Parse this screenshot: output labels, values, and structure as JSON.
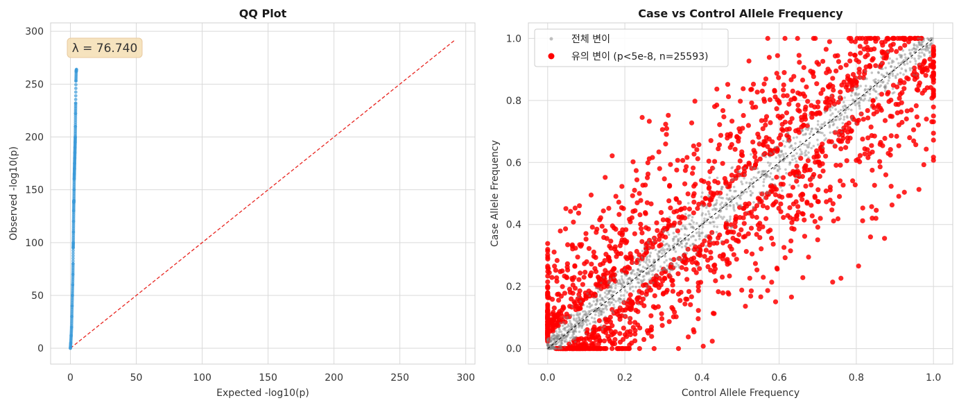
{
  "chart_data": [
    {
      "type": "scatter",
      "title": "QQ Plot",
      "xlabel": "Expected -log10(p)",
      "ylabel": "Observed -log10(p)",
      "xlim": [
        -15,
        307
      ],
      "ylim": [
        -15,
        308
      ],
      "xticks": [
        0,
        50,
        100,
        150,
        200,
        250,
        300
      ],
      "yticks": [
        0,
        50,
        100,
        150,
        200,
        250,
        300
      ],
      "grid": true,
      "annotation": "λ = 76.740",
      "colors": {
        "points": "#3a9ad9",
        "reference": "#e8231e",
        "annotation_bg": "#f5deb3"
      },
      "reference_line": {
        "x": [
          0,
          292
        ],
        "y": [
          0,
          292
        ],
        "style": "dashed"
      },
      "series": [
        {
          "x": [
            0.0,
            0.3,
            0.6,
            0.9,
            1.1,
            1.3,
            1.5,
            1.7,
            1.9,
            2.0,
            2.1,
            2.2,
            2.3,
            2.4,
            2.5,
            2.6,
            2.7,
            2.8,
            2.9,
            3.0,
            3.1,
            3.2,
            3.3,
            3.4,
            3.5,
            3.6,
            3.7,
            3.8,
            3.9,
            4.0,
            4.2,
            4.4,
            4.6
          ],
          "y": [
            0,
            5,
            12,
            20,
            30,
            40,
            50,
            60,
            70,
            80,
            95,
            100,
            110,
            120,
            130,
            138,
            140,
            150,
            160,
            165,
            170,
            175,
            180,
            185,
            190,
            195,
            200,
            210,
            222,
            232,
            253,
            262,
            264
          ]
        }
      ]
    },
    {
      "type": "scatter",
      "title": "Case vs Control Allele Frequency",
      "xlabel": "Control Allele Frequency",
      "ylabel": "Case Allele Frequency",
      "xlim": [
        -0.05,
        1.05
      ],
      "ylim": [
        -0.05,
        1.05
      ],
      "xticks": [
        0.0,
        0.2,
        0.4,
        0.6,
        0.8,
        1.0
      ],
      "yticks": [
        0.0,
        0.2,
        0.4,
        0.6,
        0.8,
        1.0
      ],
      "grid": true,
      "legend_placement": "top-left",
      "colors": {
        "all": "#808080",
        "significant": "#ff0000",
        "diagonal": "#000000"
      },
      "reference_line": {
        "x": [
          0,
          1
        ],
        "y": [
          0,
          1
        ],
        "style": "dashed"
      },
      "series": [
        {
          "name": "전체 변이",
          "style": "small gray points around the diagonal"
        },
        {
          "name": "유의 변이 (p<5e-8, n=25593)",
          "style": "red points off the diagonal"
        }
      ]
    }
  ]
}
